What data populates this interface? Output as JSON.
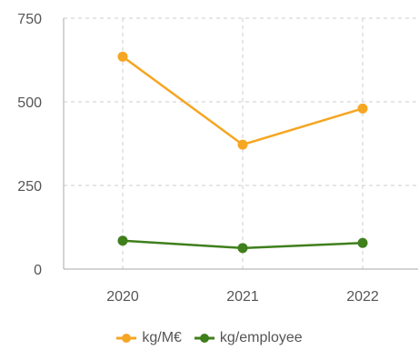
{
  "chart_data": {
    "type": "line",
    "title": "",
    "xlabel": "",
    "ylabel": "",
    "categories": [
      "2020",
      "2021",
      "2022"
    ],
    "ylim": [
      0,
      750
    ],
    "yticks": [
      0,
      250,
      500,
      750
    ],
    "grid": true,
    "legend_position": "bottom",
    "series": [
      {
        "name": "kg/M€",
        "values": [
          635,
          372,
          480
        ],
        "color": "#f5a623"
      },
      {
        "name": "kg/employee",
        "values": [
          85,
          63,
          78
        ],
        "color": "#3f7f1c"
      }
    ]
  }
}
